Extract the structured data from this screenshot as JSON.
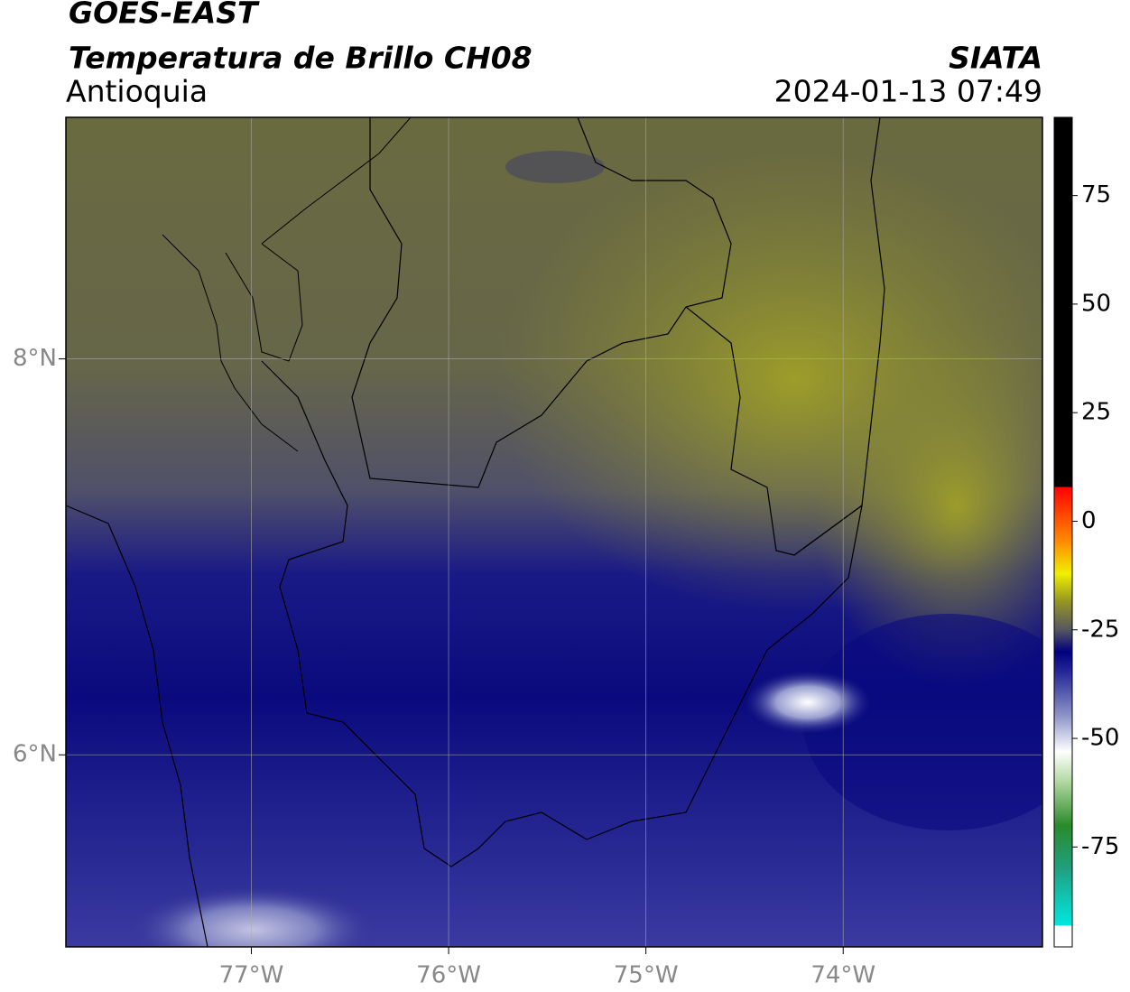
{
  "header": {
    "title": "GOES-EAST",
    "subtitle": "Temperatura de Brillo CH08",
    "region": "Antioquia",
    "source": "SIATA",
    "datetime": "2024-01-13 07:49"
  },
  "map": {
    "xlim": [
      -77.94,
      -72.99
    ],
    "ylim": [
      5.03,
      9.22
    ],
    "xticks": [
      {
        "value": -77,
        "label": "77°W"
      },
      {
        "value": -76,
        "label": "76°W"
      },
      {
        "value": -75,
        "label": "75°W"
      },
      {
        "value": -74,
        "label": "74°W"
      }
    ],
    "yticks": [
      {
        "value": 6,
        "label": "6°N"
      },
      {
        "value": 8,
        "label": "8°N"
      }
    ],
    "grid": true
  },
  "colorbar": {
    "lim": [
      -98,
      93
    ],
    "ticks": [
      -75,
      -50,
      -25,
      0,
      25,
      50,
      75
    ],
    "stops": [
      {
        "value": -98,
        "color": "#ffffff"
      },
      {
        "value": -93,
        "color": "#ffffff"
      },
      {
        "value": -93,
        "color": "#00e8e0"
      },
      {
        "value": -80,
        "color": "#20a080"
      },
      {
        "value": -70,
        "color": "#2a8a2a"
      },
      {
        "value": -60,
        "color": "#b0d8a0"
      },
      {
        "value": -53,
        "color": "#ffffff"
      },
      {
        "value": -45,
        "color": "#9098c8"
      },
      {
        "value": -35,
        "color": "#2a2a9a"
      },
      {
        "value": -30,
        "color": "#00007f"
      },
      {
        "value": -25,
        "color": "#555560"
      },
      {
        "value": -18,
        "color": "#9a9a20"
      },
      {
        "value": -12,
        "color": "#f0f000"
      },
      {
        "value": -5,
        "color": "#ff9000"
      },
      {
        "value": 8,
        "color": "#ff0000"
      },
      {
        "value": 8,
        "color": "#000000"
      },
      {
        "value": 93,
        "color": "#000000"
      }
    ]
  }
}
